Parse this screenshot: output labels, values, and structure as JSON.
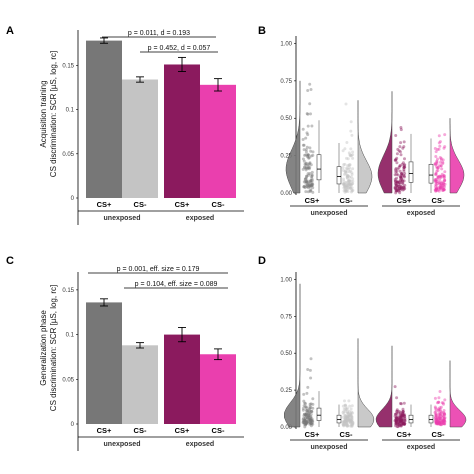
{
  "colors": {
    "unexposed_cs_plus": "#777777",
    "unexposed_cs_minus": "#c4c4c4",
    "exposed_cs_plus": "#8b1a5e",
    "exposed_cs_minus": "#ea3fae"
  },
  "chart_data": [
    {
      "panel": "A",
      "type": "bar",
      "ylabel_lines": [
        "Acquisition training",
        "CS discrimination: SCR [µS, log, rc]"
      ],
      "ylim": [
        0,
        0.19
      ],
      "yticks": [
        "0",
        "0.05",
        "0.1",
        "0.15"
      ],
      "ytick_values": [
        0,
        0.05,
        0.1,
        0.15
      ],
      "categories": [
        "CS+",
        "CS-",
        "CS+",
        "CS-"
      ],
      "groups": [
        "unexposed",
        "exposed"
      ],
      "values": [
        0.178,
        0.134,
        0.151,
        0.128
      ],
      "errors": [
        0.003,
        0.003,
        0.008,
        0.007
      ],
      "annotations": [
        "p = 0.011, d = 0.193",
        "p = 0.452, d = 0.057"
      ]
    },
    {
      "panel": "B",
      "type": "scatter",
      "ylim": [
        0,
        1.05
      ],
      "yticks": [
        "0.00",
        "0.25",
        "0.50",
        "0.75",
        "1.00"
      ],
      "ytick_values": [
        0,
        0.25,
        0.5,
        0.75,
        1.0
      ],
      "categories": [
        "CS+",
        "CS-",
        "CS+",
        "CS-"
      ],
      "groups": [
        "unexposed",
        "exposed"
      ],
      "medians": [
        0.16,
        0.11,
        0.13,
        0.12
      ]
    },
    {
      "panel": "C",
      "type": "bar",
      "ylabel_lines": [
        "Generalization phase",
        "CS discrimination: SCR [µS, log, rc]"
      ],
      "ylim": [
        0,
        0.17
      ],
      "yticks": [
        "0",
        "0.05",
        "0.1",
        "0.15"
      ],
      "ytick_values": [
        0,
        0.05,
        0.1,
        0.15
      ],
      "categories": [
        "CS+",
        "CS-",
        "CS+",
        "CS-"
      ],
      "groups": [
        "unexposed",
        "exposed"
      ],
      "values": [
        0.136,
        0.088,
        0.1,
        0.078
      ],
      "errors": [
        0.004,
        0.003,
        0.008,
        0.006
      ],
      "annotations": [
        "p = 0.001, eff. size = 0.179",
        "p = 0.104, eff. size = 0.089"
      ]
    },
    {
      "panel": "D",
      "type": "scatter",
      "ylim": [
        0,
        1.05
      ],
      "yticks": [
        "0.00",
        "0.25",
        "0.50",
        "0.75",
        "1.00"
      ],
      "ytick_values": [
        0,
        0.25,
        0.5,
        0.75,
        1.0
      ],
      "categories": [
        "CS+",
        "CS-",
        "CS+",
        "CS-"
      ],
      "groups": [
        "unexposed",
        "exposed"
      ],
      "medians": [
        0.08,
        0.05,
        0.05,
        0.05
      ]
    }
  ]
}
